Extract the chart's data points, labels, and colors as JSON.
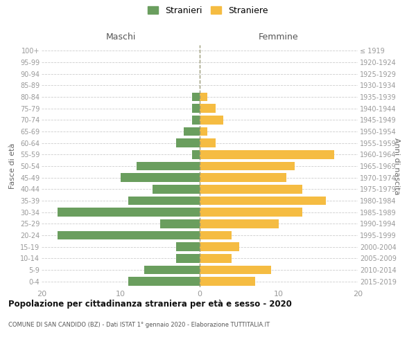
{
  "age_groups_bottom_to_top": [
    "0-4",
    "5-9",
    "10-14",
    "15-19",
    "20-24",
    "25-29",
    "30-34",
    "35-39",
    "40-44",
    "45-49",
    "50-54",
    "55-59",
    "60-64",
    "65-69",
    "70-74",
    "75-79",
    "80-84",
    "85-89",
    "90-94",
    "95-99",
    "100+"
  ],
  "birth_years_bottom_to_top": [
    "2015-2019",
    "2010-2014",
    "2005-2009",
    "2000-2004",
    "1995-1999",
    "1990-1994",
    "1985-1989",
    "1980-1984",
    "1975-1979",
    "1970-1974",
    "1965-1969",
    "1960-1964",
    "1955-1959",
    "1950-1954",
    "1945-1949",
    "1940-1944",
    "1935-1939",
    "1930-1934",
    "1925-1929",
    "1920-1924",
    "≤ 1919"
  ],
  "maschi_bottom_to_top": [
    9,
    7,
    3,
    3,
    18,
    5,
    18,
    9,
    6,
    10,
    8,
    1,
    3,
    2,
    1,
    1,
    1,
    0,
    0,
    0,
    0
  ],
  "femmine_bottom_to_top": [
    7,
    9,
    4,
    5,
    4,
    10,
    13,
    16,
    13,
    11,
    12,
    17,
    2,
    1,
    3,
    2,
    1,
    0,
    0,
    0,
    0
  ],
  "color_maschi": "#6a9e5e",
  "color_femmine": "#f5bc42",
  "title": "Popolazione per cittadinanza straniera per età e sesso - 2020",
  "subtitle": "COMUNE DI SAN CANDIDO (BZ) - Dati ISTAT 1° gennaio 2020 - Elaborazione TUTTITALIA.IT",
  "xlabel_left": "Maschi",
  "xlabel_right": "Femmine",
  "ylabel_left": "Fasce di età",
  "ylabel_right": "Anni di nascita",
  "legend_maschi": "Stranieri",
  "legend_femmine": "Straniere",
  "xlim": 20,
  "xticks": [
    -20,
    -10,
    0,
    10,
    20
  ],
  "xticklabels": [
    "20",
    "10",
    "0",
    "10",
    "20"
  ],
  "background_color": "#ffffff",
  "grid_color": "#cccccc"
}
